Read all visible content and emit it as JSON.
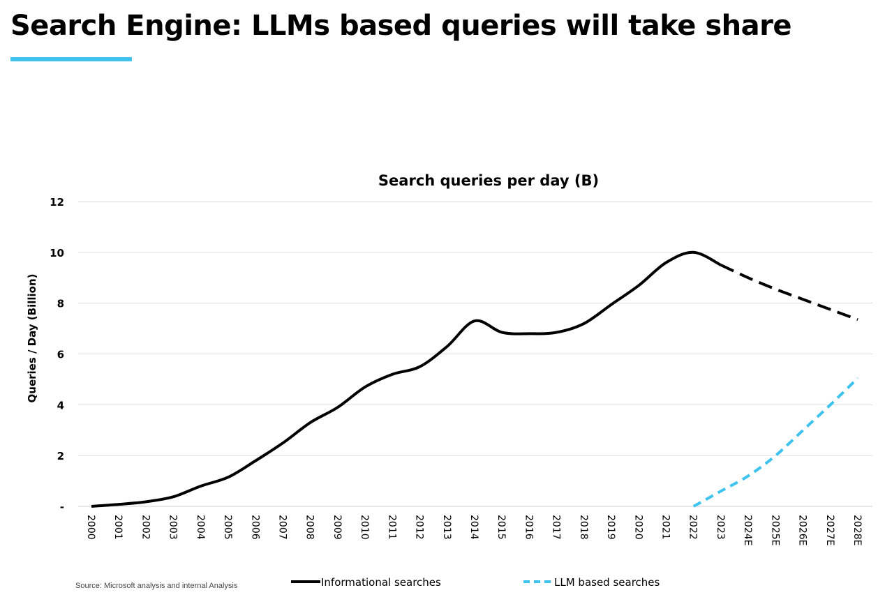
{
  "slide": {
    "title": "Search Engine: LLMs based queries will take share",
    "source": "Source: Microsoft analysis and internal Analysis",
    "accent_color": "#3ec3ee"
  },
  "chart_data": {
    "type": "line",
    "title": "Search queries per day (B)",
    "xlabel": "",
    "ylabel": "Queries / Day (Billion)",
    "ylim": [
      0,
      12
    ],
    "yticks": [
      {
        "value": 0,
        "label": "-"
      },
      {
        "value": 2,
        "label": "2"
      },
      {
        "value": 4,
        "label": "4"
      },
      {
        "value": 6,
        "label": "6"
      },
      {
        "value": 8,
        "label": "8"
      },
      {
        "value": 10,
        "label": "10"
      },
      {
        "value": 12,
        "label": "12"
      }
    ],
    "categories": [
      "2000",
      "2001",
      "2002",
      "2003",
      "2004",
      "2005",
      "2006",
      "2007",
      "2008",
      "2009",
      "2010",
      "2011",
      "2012",
      "2013",
      "2014",
      "2015",
      "2016",
      "2017",
      "2018",
      "2019",
      "2020",
      "2021",
      "2022",
      "2023",
      "2024E",
      "2025E",
      "2026E",
      "2027E",
      "2028E"
    ],
    "grid": true,
    "legend_position": "bottom",
    "series": [
      {
        "name": "Informational searches",
        "color": "#000000",
        "style": "solid",
        "values": [
          0.0,
          0.08,
          0.18,
          0.38,
          0.8,
          1.15,
          1.8,
          2.5,
          3.3,
          3.9,
          4.7,
          5.2,
          5.5,
          6.3,
          7.3,
          6.85,
          6.8,
          6.85,
          7.2,
          7.95,
          8.7,
          9.6,
          10.0,
          9.5,
          null,
          null,
          null,
          null,
          null
        ]
      },
      {
        "name": "Informational searches (forecast)",
        "color": "#000000",
        "style": "dashed",
        "values": [
          null,
          null,
          null,
          null,
          null,
          null,
          null,
          null,
          null,
          null,
          null,
          null,
          null,
          null,
          null,
          null,
          null,
          null,
          null,
          null,
          null,
          null,
          null,
          9.5,
          9.0,
          8.55,
          8.15,
          7.75,
          7.35
        ]
      },
      {
        "name": "LLM based searches",
        "color": "#3ec3ee",
        "style": "dashed",
        "values": [
          null,
          null,
          null,
          null,
          null,
          null,
          null,
          null,
          null,
          null,
          null,
          null,
          null,
          null,
          null,
          null,
          null,
          null,
          null,
          null,
          null,
          null,
          0.0,
          0.6,
          1.2,
          2.0,
          3.0,
          4.0,
          5.05
        ]
      }
    ],
    "legend": [
      {
        "label": "Informational searches",
        "color": "#000000",
        "style": "solid"
      },
      {
        "label": "LLM based searches",
        "color": "#3ec3ee",
        "style": "dashed"
      }
    ]
  }
}
